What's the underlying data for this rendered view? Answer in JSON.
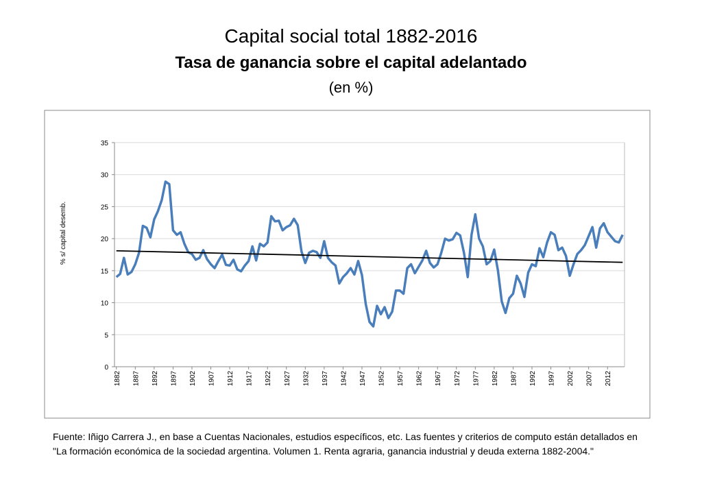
{
  "chart_data": {
    "type": "line",
    "title": "Capital social total 1882-2016",
    "subtitle": "Tasa de ganancia sobre el capital adelantado",
    "unit_note": "(en %)",
    "y_label": "% s/ capital desemb.",
    "source": [
      "Fuente: Iñigo Carrera J.,  en base a Cuentas Nacionales, estudios específicos, etc. Las fuentes y criterios de computo están detallados en",
      "\"La formación económica de la sociedad argentina. Volumen 1. Renta agraria, ganancia industrial y deuda externa 1882-2004.\""
    ],
    "x": [
      1882,
      1883,
      1884,
      1885,
      1886,
      1887,
      1888,
      1889,
      1890,
      1891,
      1892,
      1893,
      1894,
      1895,
      1896,
      1897,
      1898,
      1899,
      1900,
      1901,
      1902,
      1903,
      1904,
      1905,
      1906,
      1907,
      1908,
      1909,
      1910,
      1911,
      1912,
      1913,
      1914,
      1915,
      1916,
      1917,
      1918,
      1919,
      1920,
      1921,
      1922,
      1923,
      1924,
      1925,
      1926,
      1927,
      1928,
      1929,
      1930,
      1931,
      1932,
      1933,
      1934,
      1935,
      1936,
      1937,
      1938,
      1939,
      1940,
      1941,
      1942,
      1943,
      1944,
      1945,
      1946,
      1947,
      1948,
      1949,
      1950,
      1951,
      1952,
      1953,
      1954,
      1955,
      1956,
      1957,
      1958,
      1959,
      1960,
      1961,
      1962,
      1963,
      1964,
      1965,
      1966,
      1967,
      1968,
      1969,
      1970,
      1971,
      1972,
      1973,
      1974,
      1975,
      1976,
      1977,
      1978,
      1979,
      1980,
      1981,
      1982,
      1983,
      1984,
      1985,
      1986,
      1987,
      1988,
      1989,
      1990,
      1991,
      1992,
      1993,
      1994,
      1995,
      1996,
      1997,
      1998,
      1999,
      2000,
      2001,
      2002,
      2003,
      2004,
      2005,
      2006,
      2007,
      2008,
      2009,
      2010,
      2011,
      2012,
      2013,
      2014,
      2015,
      2016
    ],
    "series": [
      {
        "color": "#4a7ebb",
        "values": [
          14.0,
          14.5,
          17.0,
          14.4,
          14.8,
          16.0,
          17.8,
          22.0,
          21.7,
          20.2,
          23.0,
          24.3,
          26.0,
          28.9,
          28.5,
          21.3,
          20.6,
          21.0,
          19.2,
          17.9,
          17.6,
          16.7,
          17.0,
          18.2,
          16.8,
          16.0,
          15.4,
          16.5,
          17.5,
          15.9,
          15.8,
          16.7,
          15.2,
          14.9,
          15.8,
          16.5,
          18.8,
          16.6,
          19.2,
          18.8,
          19.4,
          23.5,
          22.7,
          22.8,
          21.3,
          21.8,
          22.1,
          23.1,
          22.1,
          18.0,
          16.2,
          17.8,
          18.1,
          17.9,
          17.0,
          19.6,
          17.0,
          16.3,
          15.8,
          13.0,
          14.0,
          14.6,
          15.4,
          14.4,
          16.5,
          14.3,
          9.8,
          7.0,
          6.3,
          9.5,
          8.2,
          9.3,
          7.6,
          8.6,
          11.9,
          11.9,
          11.4,
          15.4,
          16.0,
          14.6,
          15.6,
          16.6,
          18.1,
          16.2,
          15.5,
          16.0,
          17.8,
          20.0,
          19.7,
          19.9,
          20.9,
          20.5,
          17.8,
          14.0,
          20.6,
          23.8,
          20.0,
          18.8,
          16.0,
          16.5,
          18.3,
          15.0,
          10.2,
          8.4,
          10.7,
          11.4,
          14.2,
          13.0,
          10.9,
          14.7,
          16.0,
          15.7,
          18.5,
          17.1,
          19.4,
          21.0,
          20.6,
          18.2,
          18.6,
          17.3,
          14.2,
          16.0,
          17.6,
          18.2,
          19.0,
          20.4,
          21.8,
          18.6,
          21.6,
          22.4,
          21.0,
          20.3,
          19.6,
          19.4,
          20.6
        ]
      }
    ],
    "trendline": {
      "x": [
        1882,
        2016
      ],
      "values": [
        18.1,
        16.3
      ],
      "color": "#000000"
    },
    "xlim": [
      1881.5,
      2016.5
    ],
    "xticks": [
      1882,
      1887,
      1892,
      1897,
      1902,
      1907,
      1912,
      1917,
      1922,
      1927,
      1932,
      1937,
      1942,
      1947,
      1952,
      1957,
      1962,
      1967,
      1972,
      1977,
      1982,
      1987,
      1992,
      1997,
      2002,
      2007,
      2012
    ],
    "ylim": [
      0,
      35
    ],
    "yticks": [
      0,
      5,
      10,
      15,
      20,
      25,
      30,
      35
    ],
    "grid": true
  }
}
